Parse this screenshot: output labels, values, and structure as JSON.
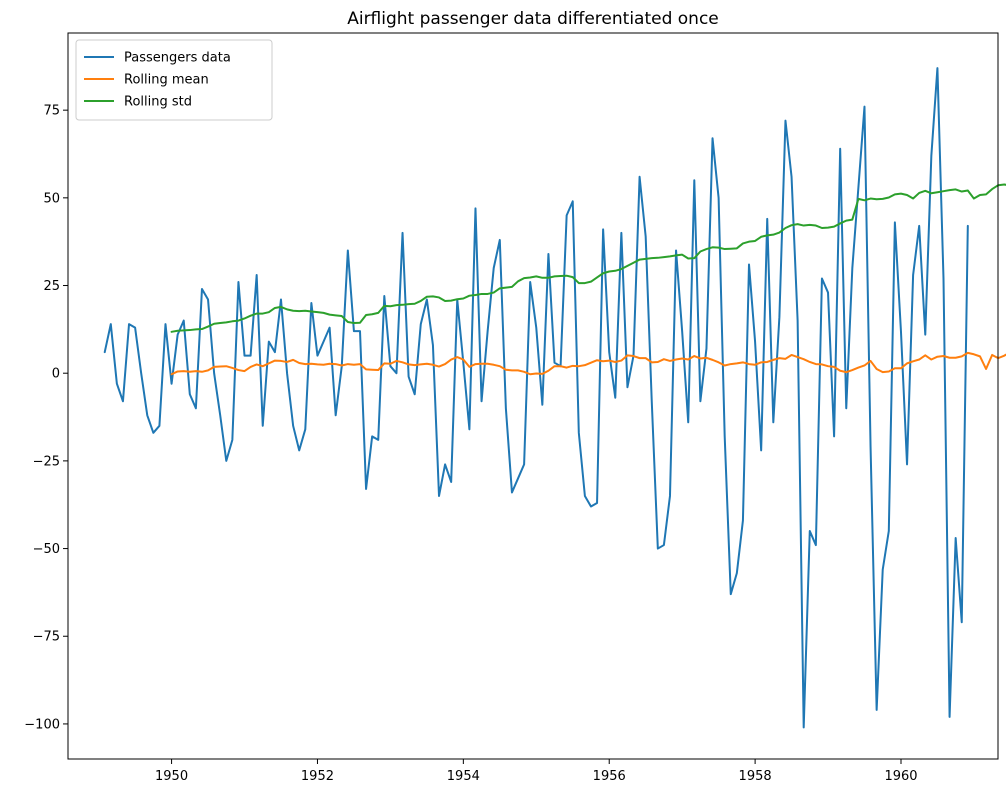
{
  "chart_data": {
    "type": "line",
    "title": "Airflight passenger data differentiated once",
    "xlabel": "",
    "ylabel": "",
    "xlim": [
      1948.58,
      1961.33
    ],
    "ylim": [
      -110,
      97
    ],
    "x_ticks": [
      1950,
      1952,
      1954,
      1956,
      1958,
      1960
    ],
    "y_ticks": [
      75,
      50,
      25,
      0,
      -25,
      -50,
      -75,
      -100
    ],
    "grid": false,
    "legend_position": "top-left",
    "x_start": 1949.0833,
    "x_step": 0.08333,
    "series": [
      {
        "name": "Passengers data",
        "color": "#1f77b4",
        "offset": 0,
        "values": [
          6,
          14,
          -3,
          -8,
          14,
          13,
          0,
          -12,
          -17,
          -15,
          14,
          -3,
          11,
          15,
          -6,
          -10,
          24,
          21,
          0,
          -12,
          -25,
          -19,
          26,
          5,
          5,
          28,
          -15,
          9,
          6,
          21,
          0,
          -15,
          -22,
          -16,
          20,
          5,
          9,
          13,
          -12,
          2,
          35,
          12,
          12,
          -33,
          -18,
          -19,
          22,
          2,
          0,
          40,
          -1,
          -6,
          14,
          21,
          8,
          -35,
          -26,
          -31,
          21,
          3,
          -16,
          47,
          -8,
          12,
          30,
          38,
          -10,
          -34,
          -30,
          -26,
          26,
          13,
          -9,
          34,
          3,
          2,
          45,
          49,
          -17,
          -35,
          -38,
          -37,
          41,
          6,
          -7,
          40,
          -4,
          5,
          56,
          39,
          -8,
          -50,
          -49,
          -35,
          35,
          12,
          -14,
          55,
          -8,
          7,
          67,
          50,
          -18,
          -63,
          -57,
          -42,
          31,
          9,
          -22,
          44,
          -14,
          16,
          72,
          56,
          15,
          -101,
          -45,
          -49,
          27,
          23,
          -18,
          64,
          -10,
          30,
          53,
          76,
          -21,
          -96,
          -56,
          -45,
          43,
          12,
          -26,
          28,
          42,
          11,
          62,
          87,
          27,
          -98,
          -47,
          -71,
          42
        ]
      },
      {
        "name": "Rolling mean",
        "color": "#ff7f0e",
        "offset": 11,
        "values": [
          -0.3,
          0.5,
          0.6,
          0.4,
          0.6,
          0.4,
          0.8,
          1.8,
          1.9,
          2.0,
          1.5,
          0.9,
          0.6,
          1.8,
          2.5,
          2.0,
          2.8,
          3.6,
          3.5,
          3.2,
          3.8,
          2.9,
          2.6,
          2.7,
          2.5,
          2.4,
          2.7,
          2.6,
          2.2,
          2.6,
          2.4,
          2.6,
          1.1,
          1.0,
          0.9,
          2.8,
          2.7,
          3.5,
          3.1,
          2.5,
          2.3,
          2.5,
          2.7,
          2.4,
          1.9,
          2.6,
          3.9,
          4.6,
          3.9,
          1.8,
          2.6,
          2.7,
          2.7,
          2.4,
          2.0,
          1.0,
          0.8,
          0.8,
          0.4,
          -0.3,
          -0.1,
          -0.2,
          0.7,
          2.0,
          2.0,
          1.6,
          2.1,
          2.0,
          2.3,
          3.0,
          3.7,
          3.4,
          3.6,
          3.2,
          3.6,
          5.1,
          4.9,
          4.3,
          4.3,
          3.1,
          3.2,
          4.0,
          3.5,
          3.9,
          4.2,
          3.9,
          4.9,
          4.2,
          4.4,
          3.8,
          3.1,
          2.2,
          2.6,
          2.8,
          3.1,
          2.6,
          2.4,
          3.1,
          3.2,
          3.8,
          4.3,
          4.1,
          5.2,
          4.6,
          4.0,
          3.2,
          2.6,
          2.5,
          2.0,
          1.8,
          0.7,
          0.3,
          0.9,
          1.6,
          2.2,
          3.5,
          1.2,
          0.3,
          0.5,
          1.4,
          1.4,
          2.8,
          3.4,
          3.9,
          5.1,
          3.9,
          4.7,
          4.9,
          4.4,
          4.4,
          4.8,
          5.8,
          5.4,
          4.8,
          1.2,
          5.2,
          4.3,
          5.0,
          6.0,
          4.2,
          3.9,
          4.4,
          2.3,
          2.2
        ]
      },
      {
        "name": "Rolling std",
        "color": "#2ca02c",
        "offset": 11,
        "values": [
          11.8,
          12.1,
          12.2,
          12.3,
          12.5,
          12.6,
          13.3,
          14.1,
          14.3,
          14.5,
          14.8,
          15.0,
          15.6,
          16.4,
          17.0,
          17.0,
          17.4,
          18.6,
          18.9,
          18.2,
          17.8,
          17.7,
          17.8,
          17.6,
          17.4,
          17.2,
          16.7,
          16.5,
          16.3,
          14.6,
          14.3,
          14.4,
          16.6,
          16.8,
          17.2,
          19.2,
          19.1,
          19.4,
          19.5,
          19.7,
          19.8,
          20.6,
          21.8,
          21.9,
          21.6,
          20.6,
          20.7,
          21.1,
          21.3,
          22.1,
          22.3,
          22.6,
          22.6,
          23.0,
          24.2,
          24.4,
          24.6,
          26.2,
          27.1,
          27.3,
          27.6,
          27.2,
          27.2,
          27.6,
          27.7,
          27.8,
          27.4,
          25.7,
          25.7,
          26.1,
          27.3,
          28.5,
          29.0,
          29.2,
          29.7,
          30.6,
          31.5,
          32.4,
          32.6,
          32.8,
          32.9,
          33.1,
          33.3,
          33.6,
          33.8,
          32.7,
          32.8,
          34.7,
          35.4,
          35.9,
          35.8,
          35.4,
          35.5,
          35.6,
          37.0,
          37.5,
          37.7,
          38.9,
          39.3,
          39.5,
          40.1,
          41.4,
          42.2,
          42.5,
          42.1,
          42.3,
          42.1,
          41.4,
          41.5,
          41.8,
          42.7,
          43.5,
          43.8,
          49.7,
          49.3,
          49.8,
          49.6,
          49.7,
          50.1,
          51.0,
          51.2,
          50.8,
          49.8,
          51.4,
          52.0,
          51.3,
          51.6,
          51.9,
          52.2,
          52.4,
          51.8,
          52.1,
          49.8,
          50.8,
          51.0,
          52.5,
          53.6,
          53.8,
          53.5,
          52.8,
          55.2,
          55.4
        ]
      }
    ]
  }
}
